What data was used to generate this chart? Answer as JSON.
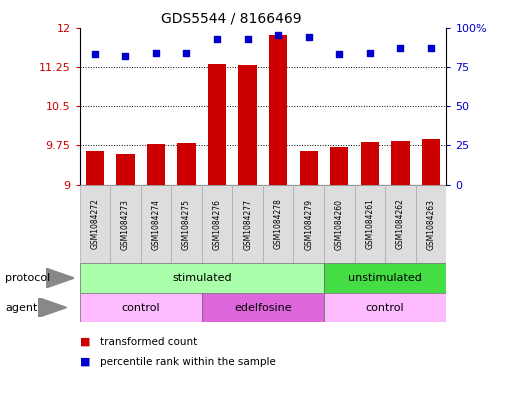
{
  "title": "GDS5544 / 8166469",
  "samples": [
    "GSM1084272",
    "GSM1084273",
    "GSM1084274",
    "GSM1084275",
    "GSM1084276",
    "GSM1084277",
    "GSM1084278",
    "GSM1084279",
    "GSM1084260",
    "GSM1084261",
    "GSM1084262",
    "GSM1084263"
  ],
  "transformed_count": [
    9.65,
    9.58,
    9.78,
    9.8,
    11.3,
    11.28,
    11.85,
    9.65,
    9.72,
    9.82,
    9.83,
    9.88
  ],
  "percentile_rank": [
    83,
    82,
    84,
    84,
    93,
    93,
    95,
    94,
    83,
    84,
    87,
    87
  ],
  "ylim_left": [
    9,
    12
  ],
  "ylim_right": [
    0,
    100
  ],
  "yticks_left": [
    9,
    9.75,
    10.5,
    11.25,
    12
  ],
  "yticks_right": [
    0,
    25,
    50,
    75,
    100
  ],
  "bar_color": "#cc0000",
  "dot_color": "#0000cc",
  "protocol_groups": [
    {
      "label": "stimulated",
      "start": 0,
      "end": 8,
      "color": "#aaffaa"
    },
    {
      "label": "unstimulated",
      "start": 8,
      "end": 12,
      "color": "#44dd44"
    }
  ],
  "agent_groups": [
    {
      "label": "control",
      "start": 0,
      "end": 4,
      "color": "#ffbbff"
    },
    {
      "label": "edelfosine",
      "start": 4,
      "end": 8,
      "color": "#dd66dd"
    },
    {
      "label": "control",
      "start": 8,
      "end": 12,
      "color": "#ffbbff"
    }
  ],
  "legend_bar_label": "transformed count",
  "legend_dot_label": "percentile rank within the sample",
  "protocol_label": "protocol",
  "agent_label": "agent",
  "arrow_color": "#888888",
  "sample_box_color": "#dddddd",
  "title_fontsize": 10,
  "axis_fontsize": 8,
  "label_fontsize": 7.5
}
